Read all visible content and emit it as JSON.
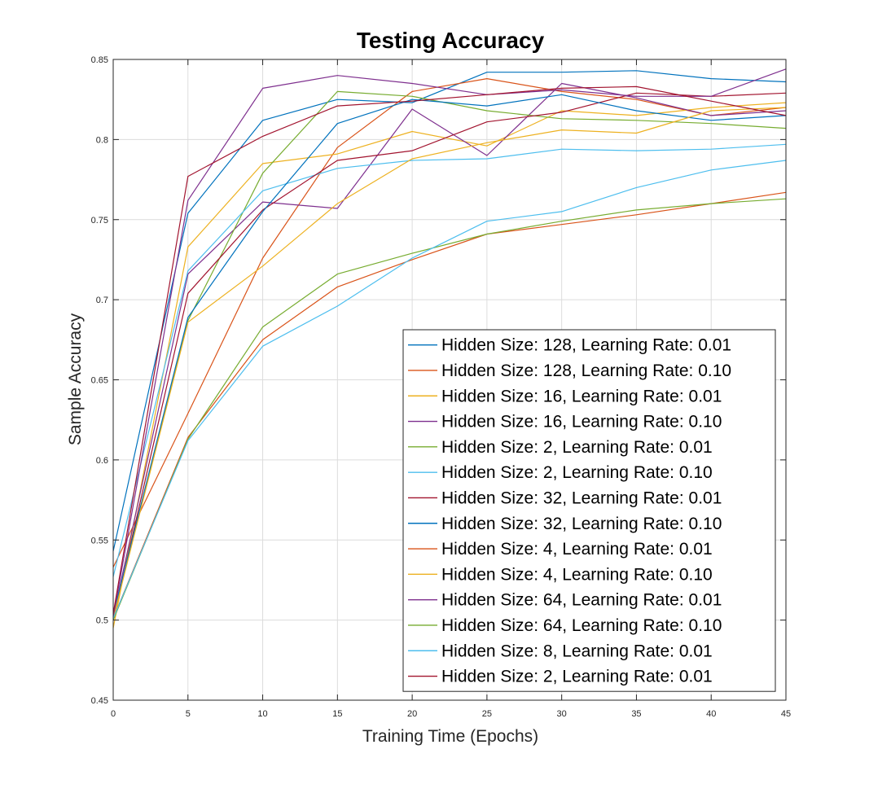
{
  "chart_data": {
    "type": "line",
    "title": "Testing Accuracy",
    "xlabel": "Training Time (Epochs)",
    "ylabel": "Sample Accuracy",
    "xlim": [
      0,
      45
    ],
    "ylim": [
      0.45,
      0.85
    ],
    "xticks": [
      0,
      5,
      10,
      15,
      20,
      25,
      30,
      35,
      40,
      45
    ],
    "xtick_labels": [
      "0",
      "5",
      "10",
      "15",
      "20",
      "25",
      "30",
      "35",
      "40",
      "45"
    ],
    "yticks": [
      0.45,
      0.5,
      0.55,
      0.6,
      0.65,
      0.7,
      0.75,
      0.8,
      0.85
    ],
    "ytick_labels": [
      "0.45",
      "0.5",
      "0.55",
      "0.6",
      "0.65",
      "0.7",
      "0.75",
      "0.8",
      "0.85"
    ],
    "grid": true,
    "legend_position": "bottom-right",
    "x": [
      0,
      5,
      10,
      15,
      20,
      25,
      30,
      35,
      40,
      45
    ],
    "series": [
      {
        "name": "Hidden Size: 128, Learning Rate: 0.01",
        "color": "#0072BD",
        "values": [
          0.543,
          0.754,
          0.812,
          0.825,
          0.823,
          0.842,
          0.842,
          0.843,
          0.838,
          0.836
        ]
      },
      {
        "name": "Hidden Size: 128, Learning Rate: 0.10",
        "color": "#D95319",
        "values": [
          0.533,
          0.629,
          0.726,
          0.795,
          0.83,
          0.838,
          0.83,
          0.825,
          0.815,
          0.82
        ]
      },
      {
        "name": "Hidden Size: 16, Learning Rate: 0.01",
        "color": "#EDB120",
        "values": [
          0.495,
          0.733,
          0.785,
          0.791,
          0.805,
          0.796,
          0.818,
          0.815,
          0.82,
          0.823
        ]
      },
      {
        "name": "Hidden Size: 16, Learning Rate: 0.10",
        "color": "#7E2F8E",
        "values": [
          0.502,
          0.716,
          0.761,
          0.757,
          0.819,
          0.79,
          0.835,
          0.826,
          0.815,
          0.818
        ]
      },
      {
        "name": "Hidden Size: 2, Learning Rate: 0.01",
        "color": "#77AC30",
        "values": [
          0.503,
          0.687,
          0.779,
          0.83,
          0.827,
          0.818,
          0.813,
          0.812,
          0.81,
          0.807
        ]
      },
      {
        "name": "Hidden Size: 2, Learning Rate: 0.10",
        "color": "#4DBEEE",
        "values": [
          0.527,
          0.718,
          0.768,
          0.782,
          0.787,
          0.788,
          0.794,
          0.793,
          0.794,
          0.797
        ]
      },
      {
        "name": "Hidden Size: 32, Learning Rate: 0.01",
        "color": "#A2142F",
        "values": [
          0.5,
          0.704,
          0.756,
          0.787,
          0.793,
          0.811,
          0.817,
          0.829,
          0.827,
          0.829
        ]
      },
      {
        "name": "Hidden Size: 32, Learning Rate: 0.10",
        "color": "#0072BD",
        "values": [
          0.503,
          0.689,
          0.755,
          0.81,
          0.825,
          0.821,
          0.828,
          0.818,
          0.812,
          0.815
        ]
      },
      {
        "name": "Hidden Size: 4, Learning Rate: 0.01",
        "color": "#D95319",
        "values": [
          0.501,
          0.614,
          0.675,
          0.708,
          0.725,
          0.741,
          0.747,
          0.753,
          0.76,
          0.767
        ]
      },
      {
        "name": "Hidden Size: 4, Learning Rate: 0.10",
        "color": "#EDB120",
        "values": [
          0.501,
          0.686,
          0.721,
          0.76,
          0.788,
          0.798,
          0.806,
          0.804,
          0.818,
          0.82
        ]
      },
      {
        "name": "Hidden Size: 64, Learning Rate: 0.01",
        "color": "#7E2F8E",
        "values": [
          0.502,
          0.762,
          0.832,
          0.84,
          0.835,
          0.828,
          0.831,
          0.827,
          0.827,
          0.844
        ]
      },
      {
        "name": "Hidden Size: 64, Learning Rate: 0.10",
        "color": "#77AC30",
        "values": [
          0.5,
          0.613,
          0.683,
          0.716,
          0.729,
          0.741,
          0.749,
          0.756,
          0.76,
          0.763
        ]
      },
      {
        "name": "Hidden Size: 8, Learning Rate: 0.01",
        "color": "#4DBEEE",
        "values": [
          0.501,
          0.612,
          0.671,
          0.696,
          0.726,
          0.749,
          0.755,
          0.77,
          0.781,
          0.787
        ]
      },
      {
        "name": "Hidden Size: 2, Learning Rate: 0.01",
        "color": "#A2142F",
        "values": [
          0.504,
          0.777,
          0.802,
          0.821,
          0.824,
          0.828,
          0.832,
          0.833,
          0.824,
          0.815
        ]
      }
    ]
  }
}
